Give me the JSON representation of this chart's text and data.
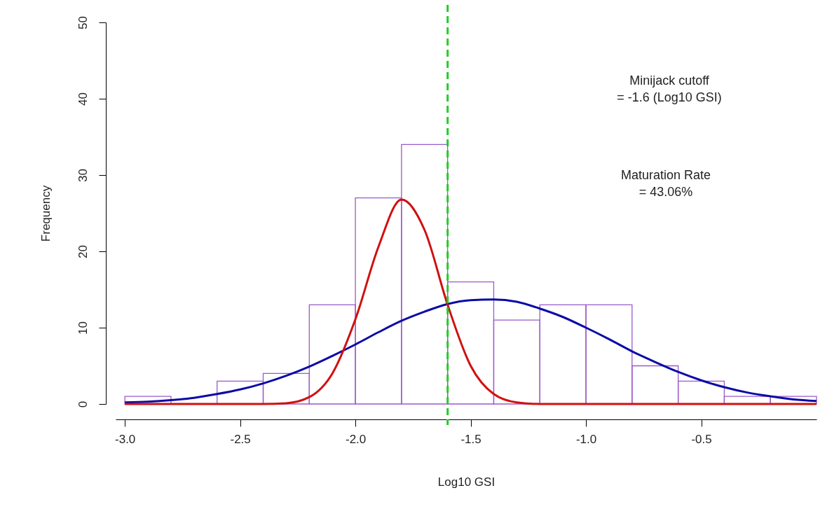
{
  "chart_data": {
    "type": "histogram",
    "xlabel": "Log10 GSI",
    "ylabel": "Frequency",
    "bins": [
      -3.0,
      -2.8,
      -2.6,
      -2.4,
      -2.2,
      -2.0,
      -1.8,
      -1.6,
      -1.4,
      -1.2,
      -1.0,
      -0.8,
      -0.6,
      -0.4,
      -0.2,
      0.0
    ],
    "values": [
      1,
      0,
      3,
      4,
      13,
      27,
      34,
      16,
      11,
      13,
      13,
      5,
      3,
      1,
      1
    ],
    "color": "#9b59c8",
    "series": [
      {
        "type": "line",
        "color": "#0a0aa8",
        "x": [
          -3.0,
          -2.9,
          -2.8,
          -2.7,
          -2.6,
          -2.5,
          -2.4,
          -2.3,
          -2.2,
          -2.1,
          -2.0,
          -1.9,
          -1.8,
          -1.7,
          -1.6,
          -1.5,
          -1.4,
          -1.3,
          -1.2,
          -1.1,
          -1.0,
          -0.9,
          -0.8,
          -0.7,
          -0.6,
          -0.5,
          -0.4,
          -0.3,
          -0.2,
          -0.1,
          0.0
        ],
        "values": [
          0.2,
          0.3,
          0.5,
          0.8,
          1.3,
          1.9,
          2.7,
          3.7,
          4.9,
          6.3,
          7.8,
          9.4,
          10.9,
          12.1,
          13.1,
          13.6,
          13.7,
          13.4,
          12.5,
          11.4,
          10.0,
          8.5,
          6.9,
          5.5,
          4.2,
          3.1,
          2.2,
          1.5,
          1.0,
          0.6,
          0.4
        ]
      },
      {
        "type": "line",
        "color": "#d01010",
        "x": [
          -3.0,
          -2.8,
          -2.6,
          -2.4,
          -2.3,
          -2.2,
          -2.1,
          -2.0,
          -1.9,
          -1.8,
          -1.7,
          -1.6,
          -1.5,
          -1.4,
          -1.3,
          -1.2,
          -1.0,
          -0.8,
          -0.6,
          -0.4,
          -0.2,
          0.0
        ],
        "values": [
          0,
          0,
          0,
          0,
          0.1,
          0.9,
          4.0,
          11.1,
          20.6,
          26.8,
          22.8,
          13.0,
          5.0,
          1.3,
          0.2,
          0,
          0,
          0,
          0,
          0,
          0,
          0
        ]
      }
    ],
    "ref_lines": [
      {
        "axis": "x",
        "value": -1.6,
        "color": "#22cc22",
        "line_style": "dashed"
      }
    ],
    "annotations": [
      "Minijack cutoff\n = -1.6 (Log10 GSI)",
      "Maturation Rate\n = 43.06%"
    ],
    "xlim": [
      -3.04,
      0.0
    ],
    "ylim": [
      0,
      50
    ],
    "xticks": [
      {
        "value": -3.0,
        "label": "-3.0"
      },
      {
        "value": -2.5,
        "label": "-2.5"
      },
      {
        "value": -2.0,
        "label": "-2.0"
      },
      {
        "value": -1.5,
        "label": "-1.5"
      },
      {
        "value": -1.0,
        "label": "-1.0"
      },
      {
        "value": -0.5,
        "label": "-0.5"
      }
    ],
    "yticks": [
      0,
      10,
      20,
      30,
      40,
      50
    ],
    "grid": false
  }
}
